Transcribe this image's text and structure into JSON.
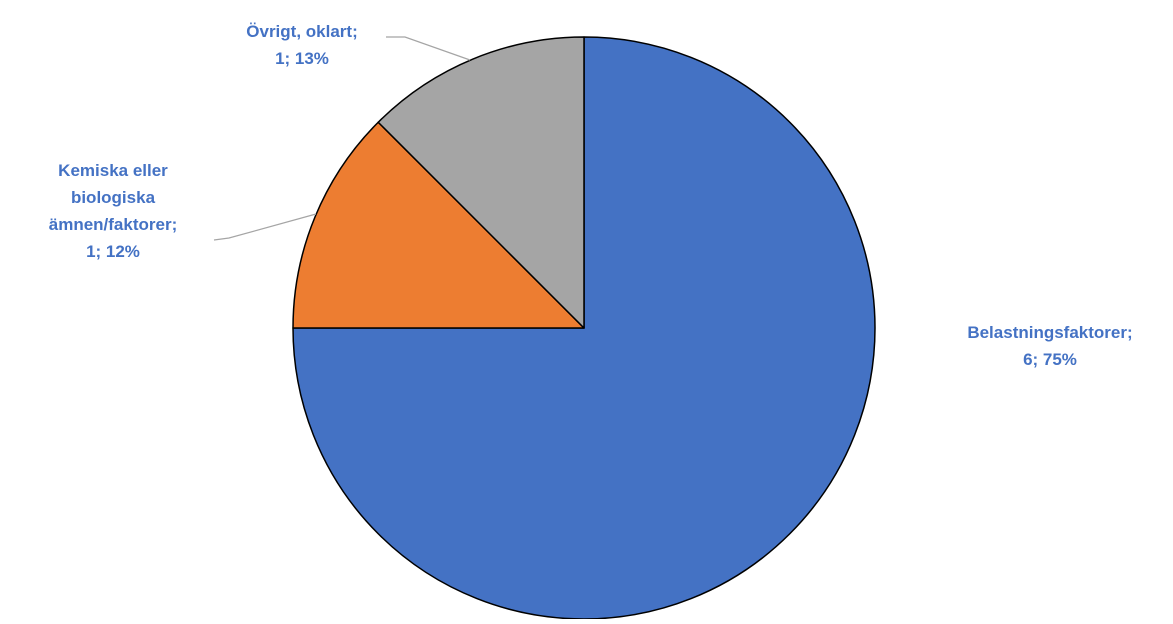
{
  "chart_data": {
    "type": "pie",
    "title": "",
    "start_angle_deg": 0,
    "direction": "clockwise",
    "slices": [
      {
        "label": "Belastningsfaktorer",
        "value": 6,
        "percent_label": "75%",
        "color": "#4472C4",
        "label_lines": [
          "Belastningsfaktorer;",
          "6; 75%"
        ]
      },
      {
        "label": "Kemiska eller biologiska ämnen/faktorer",
        "value": 1,
        "percent_label": "12%",
        "color": "#ED7D31",
        "label_lines": [
          "Kemiska eller",
          "biologiska",
          "ämnen/faktorer;",
          "1; 12%"
        ]
      },
      {
        "label": "Övrigt, oklart",
        "value": 1,
        "percent_label": "13%",
        "color": "#A5A5A5",
        "label_lines": [
          "Övrigt, oklart;",
          "1; 13%"
        ]
      }
    ],
    "label_color": "#4472C4",
    "leader_line_color": "#A5A5A5",
    "slice_border_color": "#000000",
    "legend": "none"
  }
}
